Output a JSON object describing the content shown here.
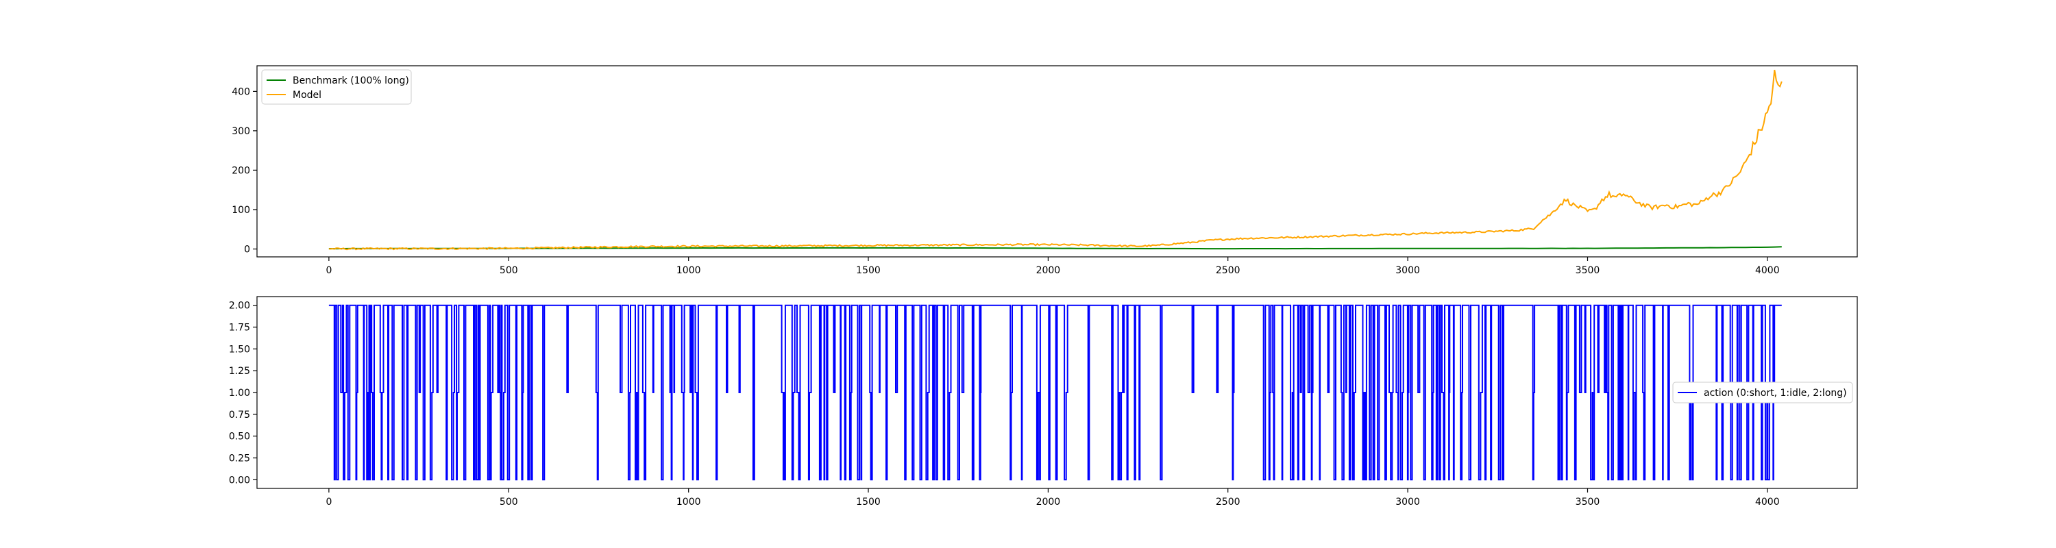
{
  "chart_data": [
    {
      "type": "line",
      "title": "",
      "xlabel": "",
      "ylabel": "",
      "xlim": [
        -200,
        4250
      ],
      "ylim": [
        -20,
        465
      ],
      "xticks": [
        0,
        500,
        1000,
        1500,
        2000,
        2500,
        3000,
        3500,
        4000
      ],
      "yticks": [
        0,
        100,
        200,
        300,
        400
      ],
      "xtick_labels": [
        "0",
        "500",
        "1000",
        "1500",
        "2000",
        "2500",
        "3000",
        "3500",
        "4000"
      ],
      "ytick_labels": [
        "0",
        "100",
        "200",
        "300",
        "400"
      ],
      "grid": false,
      "legend_position": "upper left",
      "series": [
        {
          "name": "Benchmark (100% long)",
          "color": "#008000",
          "x": [
            0,
            500,
            1000,
            1500,
            1800,
            2000,
            2200,
            2500,
            3000,
            3500,
            3800,
            4000,
            4040
          ],
          "y": [
            0.8,
            1.5,
            2.5,
            2.8,
            2.6,
            1.8,
            1.2,
            0.7,
            1.2,
            1.6,
            3.0,
            4.5,
            5.5
          ]
        },
        {
          "name": "Model",
          "color": "#ffa500",
          "x": [
            0,
            200,
            400,
            500,
            600,
            700,
            800,
            900,
            1000,
            1200,
            1500,
            1700,
            1800,
            1900,
            2000,
            2100,
            2200,
            2250,
            2300,
            2350,
            2400,
            2450,
            2500,
            2550,
            2600,
            2700,
            2800,
            2900,
            3000,
            3050,
            3100,
            3200,
            3300,
            3350,
            3370,
            3400,
            3420,
            3440,
            3460,
            3480,
            3500,
            3520,
            3540,
            3560,
            3580,
            3600,
            3620,
            3640,
            3660,
            3680,
            3700,
            3720,
            3740,
            3760,
            3780,
            3800,
            3820,
            3840,
            3860,
            3880,
            3900,
            3920,
            3940,
            3960,
            3980,
            4000,
            4010,
            4020,
            4030,
            4040
          ],
          "y": [
            0.5,
            0.8,
            1.2,
            1.5,
            2.5,
            4.0,
            5.5,
            6.5,
            7.0,
            7.5,
            9.0,
            10.0,
            10.5,
            11.0,
            11.0,
            10.0,
            8.0,
            7.0,
            9.0,
            13.0,
            17.0,
            22.0,
            25.0,
            27.0,
            28.0,
            30.0,
            33.0,
            36.0,
            38.0,
            40.0,
            41.0,
            43.0,
            47.0,
            52.0,
            70.0,
            90.0,
            110.0,
            125.0,
            112.0,
            105.0,
            95.0,
            100.0,
            125.0,
            138.0,
            130.0,
            140.0,
            128.0,
            118.0,
            110.0,
            105.0,
            108.0,
            112.0,
            106.0,
            110.0,
            115.0,
            112.0,
            120.0,
            135.0,
            140.0,
            150.0,
            170.0,
            190.0,
            220.0,
            260.0,
            300.0,
            345.0,
            375.0,
            440.0,
            405.0,
            425.0
          ]
        }
      ]
    },
    {
      "type": "line",
      "title": "",
      "xlabel": "",
      "ylabel": "",
      "xlim": [
        -200,
        4250
      ],
      "ylim": [
        -0.1,
        2.1
      ],
      "xticks": [
        0,
        500,
        1000,
        1500,
        2000,
        2500,
        3000,
        3500,
        4000
      ],
      "yticks": [
        0.0,
        0.25,
        0.5,
        0.75,
        1.0,
        1.25,
        1.5,
        1.75,
        2.0
      ],
      "xtick_labels": [
        "0",
        "500",
        "1000",
        "1500",
        "2000",
        "2500",
        "3000",
        "3500",
        "4000"
      ],
      "ytick_labels": [
        "0.00",
        "0.25",
        "0.50",
        "0.75",
        "1.00",
        "1.25",
        "1.50",
        "1.75",
        "2.00"
      ],
      "grid": false,
      "legend_position": "center right",
      "series": [
        {
          "name": "action (0:short, 1:idle, 2:long)",
          "color": "#0000ff",
          "x_start": 0,
          "x_end": 4040,
          "values_estimated": "daily action sequence (0, 1 or 2) with frequent switching; long stretches of 2 with many dips to 0 and some to 1"
        }
      ]
    }
  ]
}
